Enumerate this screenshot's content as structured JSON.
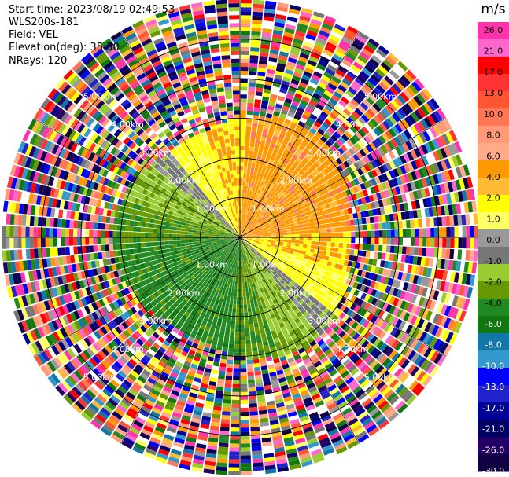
{
  "header": {
    "start_time": "Start time: 2023/08/19 02:49:53",
    "site": "WLS200s-181",
    "field": "Field: VEL",
    "elevation": "Elevation(deg): 35.30",
    "nrays": "NRays: 120"
  },
  "chart_data": {
    "type": "heatmap",
    "projection": "ppi-polar",
    "field": "VEL",
    "units": "m/s",
    "elevation_deg": 35.3,
    "n_rays": 120,
    "range_max_km": 6.0,
    "range_rings_km": [
      1,
      2,
      3,
      4,
      5
    ],
    "ring_labels": {
      "r1": "1.00km",
      "r2": "2.00km",
      "r3": "3.00km",
      "r4": "4.00km",
      "r5": "5.00km"
    },
    "colorbar": {
      "title": "m/s",
      "tick_labels": [
        "26.0",
        "21.0",
        "17.0",
        "13.0",
        "10.0",
        "8.0",
        "6.0",
        "4.0",
        "2.0",
        "1.0",
        "0.0",
        "-1.0",
        "-2.0",
        "-4.0",
        "-6.0",
        "-8.0",
        "-10.0",
        "-13.0",
        "-17.0",
        "-21.0",
        "-26.0",
        "-30.0"
      ],
      "colors": [
        "#ff33aa",
        "#ff66cc",
        "#ff0000",
        "#ff3333",
        "#ff5533",
        "#ff7755",
        "#ff9977",
        "#ffaa88",
        "#ff9900",
        "#ffbb33",
        "#ffff00",
        "#ffff66",
        "#999999",
        "#777777",
        "#99cc33",
        "#669900",
        "#228822",
        "#117711",
        "#1177aa",
        "#3399cc",
        "#0000ff",
        "#2222cc",
        "#000099",
        "#000066",
        "#220066",
        "#110044"
      ]
    },
    "pattern": {
      "approaching_color_side": "southwest (green, negative)",
      "receding_color_side": "northeast (yellow/orange, positive)",
      "noise_beyond_km": 3.0
    }
  }
}
